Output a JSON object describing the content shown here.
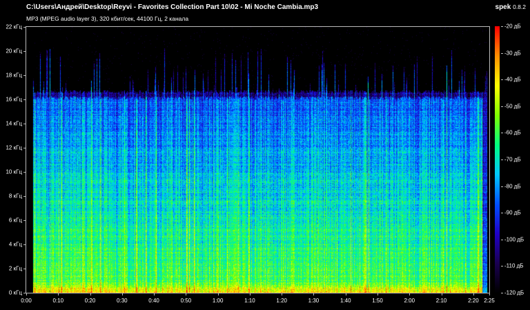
{
  "header": {
    "file_path": "C:\\Users\\Андрей\\Desktop\\Reyvi - Favorites Collection Part 10\\02 - Mi Noche Cambia.mp3",
    "file_info": "MP3 (MPEG audio layer 3), 320 кбит/сек, 44100 Гц, 2 канала",
    "app_name": "spek",
    "app_version": "0.8.2"
  },
  "chart_data": {
    "type": "heatmap",
    "x_ticks": [
      "0:00",
      "0:10",
      "0:20",
      "0:30",
      "0:40",
      "0:50",
      "1:00",
      "1:10",
      "1:20",
      "1:30",
      "1:40",
      "1:50",
      "2:00",
      "2:10",
      "2:20",
      "2:25"
    ],
    "x_tick_seconds": [
      0,
      10,
      20,
      30,
      40,
      50,
      60,
      70,
      80,
      90,
      100,
      110,
      120,
      130,
      140,
      145
    ],
    "xlim_seconds": [
      0,
      145
    ],
    "y_ticks": [
      "0 кГц",
      "2 кГц",
      "4 кГц",
      "6 кГц",
      "8 кГц",
      "10 кГц",
      "12 кГц",
      "14 кГц",
      "16 кГц",
      "18 кГц",
      "20 кГц",
      "22 кГц"
    ],
    "y_tick_khz": [
      0,
      2,
      4,
      6,
      8,
      10,
      12,
      14,
      16,
      18,
      20,
      22
    ],
    "ylim_khz": [
      0,
      22
    ],
    "colorbar_ticks": [
      "-20 дБ",
      "-30 дБ",
      "-40 дБ",
      "-50 дБ",
      "-60 дБ",
      "-70 дБ",
      "-80 дБ",
      "-90 дБ",
      "-100 дБ",
      "-110 дБ",
      "-120 дБ"
    ],
    "colorbar_range_db": [
      -120,
      -20
    ],
    "colormap": [
      "#000000",
      "#1a0050",
      "#2000c8",
      "#0050ff",
      "#00c8ff",
      "#00ff80",
      "#80ff00",
      "#ffff00",
      "#ff9000",
      "#ff0000"
    ],
    "frequency_cutoff_khz": 16
  }
}
